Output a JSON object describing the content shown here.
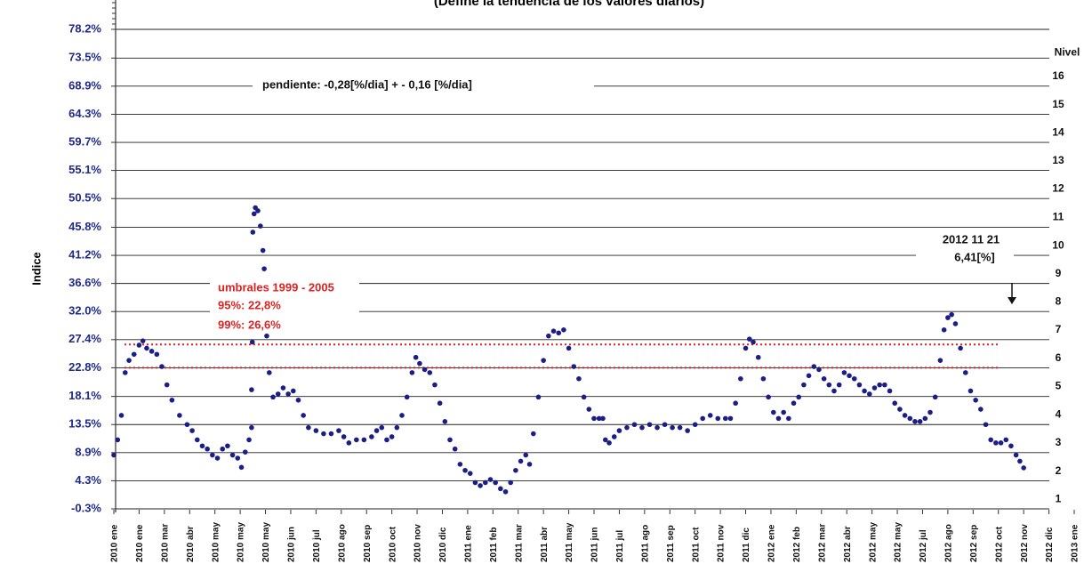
{
  "chart_data": {
    "type": "scatter",
    "title": "(Define la tendencia de los valores diarios)",
    "y_label": "Indice",
    "color": "#1b1e86",
    "xlim": [
      0,
      38
    ],
    "xticks": [
      {
        "value": 0,
        "label": "2010 ene"
      },
      {
        "value": 1,
        "label": "2010 ene"
      },
      {
        "value": 2,
        "label": "2010 mar"
      },
      {
        "value": 3,
        "label": "2010 abr"
      },
      {
        "value": 4,
        "label": "2010 may"
      },
      {
        "value": 5,
        "label": "2010 may"
      },
      {
        "value": 6,
        "label": "2010 may"
      },
      {
        "value": 7,
        "label": "2010 jun"
      },
      {
        "value": 8,
        "label": "2010 jul"
      },
      {
        "value": 9,
        "label": "2010 ago"
      },
      {
        "value": 10,
        "label": "2010 sep"
      },
      {
        "value": 11,
        "label": "2010 oct"
      },
      {
        "value": 12,
        "label": "2010 nov"
      },
      {
        "value": 13,
        "label": "2010 dic"
      },
      {
        "value": 14,
        "label": "2011 ene"
      },
      {
        "value": 15,
        "label": "2011 feb"
      },
      {
        "value": 16,
        "label": "2011 mar"
      },
      {
        "value": 17,
        "label": "2011 abr"
      },
      {
        "value": 18,
        "label": "2011 may"
      },
      {
        "value": 19,
        "label": "2011 jun"
      },
      {
        "value": 20,
        "label": "2011 jul"
      },
      {
        "value": 21,
        "label": "2011 ago"
      },
      {
        "value": 22,
        "label": "2011 sep"
      },
      {
        "value": 23,
        "label": "2011 oct"
      },
      {
        "value": 24,
        "label": "2011 nov"
      },
      {
        "value": 25,
        "label": "2011 dic"
      },
      {
        "value": 26,
        "label": "2012 ene"
      },
      {
        "value": 27,
        "label": "2012 feb"
      },
      {
        "value": 28,
        "label": "2012 mar"
      },
      {
        "value": 29,
        "label": "2012 abr"
      },
      {
        "value": 30,
        "label": "2012 may"
      },
      {
        "value": 31,
        "label": "2012 may"
      },
      {
        "value": 32,
        "label": "2012 jul"
      },
      {
        "value": 33,
        "label": "2012 ago"
      },
      {
        "value": 34,
        "label": "2012 sep"
      },
      {
        "value": 35,
        "label": "2012 oct"
      },
      {
        "value": 36,
        "label": "2012 nov"
      },
      {
        "value": 37,
        "label": "2012 dic"
      },
      {
        "value": 38,
        "label": "2013 ene"
      }
    ],
    "ylim": [
      -0.3,
      78.2
    ],
    "yticks": [
      {
        "value": -0.3,
        "label": "-0.3%"
      },
      {
        "value": 4.3,
        "label": "4.3%"
      },
      {
        "value": 8.9,
        "label": "8.9%"
      },
      {
        "value": 13.5,
        "label": "13.5%"
      },
      {
        "value": 18.1,
        "label": "18.1%"
      },
      {
        "value": 22.8,
        "label": "22.8%"
      },
      {
        "value": 27.4,
        "label": "27.4%"
      },
      {
        "value": 32.0,
        "label": "32.0%"
      },
      {
        "value": 36.6,
        "label": "36.6%"
      },
      {
        "value": 41.2,
        "label": "41.2%"
      },
      {
        "value": 45.8,
        "label": "45.8%"
      },
      {
        "value": 50.5,
        "label": "50.5%"
      },
      {
        "value": 55.1,
        "label": "55.1%"
      },
      {
        "value": 59.7,
        "label": "59.7%"
      },
      {
        "value": 64.3,
        "label": "64.3%"
      },
      {
        "value": 68.9,
        "label": "68.9%"
      },
      {
        "value": 73.5,
        "label": "73.5%"
      },
      {
        "value": 78.2,
        "label": "78.2%"
      }
    ],
    "grid": true,
    "levels": {
      "title": "Nivel",
      "labels": [
        "1",
        "2",
        "3",
        "4",
        "5",
        "6",
        "7",
        "8",
        "9",
        "10",
        "11",
        "12",
        "13",
        "14",
        "15",
        "16"
      ]
    },
    "thresholds": {
      "color": "#e01f1f",
      "values": [
        22.8,
        26.6
      ]
    },
    "annotations": {
      "slope": "pendiente:  -0,28[%/dia] + - 0,16 [%/dia]",
      "umbrales": "umbrales 1999 - 2005",
      "p95": "95%:   22,8%",
      "p99": "99%:   26,6%",
      "last_date": "2012 11 21",
      "last_value": "6,41[%]"
    },
    "series": [
      {
        "name": "Indice",
        "x": [
          0,
          0.15,
          0.3,
          0.45,
          0.6,
          0.8,
          1.0,
          1.15,
          1.3,
          1.5,
          1.7,
          1.9,
          2.1,
          2.3,
          2.6,
          2.9,
          3.1,
          3.3,
          3.5,
          3.7,
          3.9,
          4.1,
          4.3,
          4.5,
          4.7,
          4.9,
          5.05,
          5.2,
          5.35,
          5.45,
          5.45,
          5.48,
          5.5,
          5.55,
          5.6,
          5.7,
          5.8,
          5.9,
          5.95,
          6.05,
          6.15,
          6.3,
          6.5,
          6.7,
          6.9,
          7.1,
          7.3,
          7.5,
          7.7,
          8.0,
          8.3,
          8.6,
          8.9,
          9.1,
          9.3,
          9.6,
          9.9,
          10.2,
          10.4,
          10.6,
          10.8,
          11.0,
          11.2,
          11.4,
          11.6,
          11.8,
          11.95,
          12.1,
          12.3,
          12.5,
          12.7,
          12.9,
          13.1,
          13.3,
          13.5,
          13.7,
          13.9,
          14.1,
          14.3,
          14.5,
          14.7,
          14.9,
          15.1,
          15.3,
          15.5,
          15.7,
          15.9,
          16.1,
          16.3,
          16.45,
          16.6,
          16.8,
          17.0,
          17.2,
          17.4,
          17.6,
          17.8,
          18.0,
          18.2,
          18.4,
          18.6,
          18.8,
          19.0,
          19.2,
          19.35,
          19.45,
          19.6,
          19.8,
          20.0,
          20.3,
          20.6,
          20.9,
          21.2,
          21.5,
          21.8,
          22.1,
          22.4,
          22.7,
          23.0,
          23.3,
          23.6,
          23.9,
          24.2,
          24.4,
          24.6,
          24.8,
          25.0,
          25.15,
          25.3,
          25.5,
          25.7,
          25.9,
          26.1,
          26.3,
          26.5,
          26.7,
          26.9,
          27.1,
          27.3,
          27.5,
          27.7,
          27.9,
          28.1,
          28.3,
          28.5,
          28.7,
          28.9,
          29.1,
          29.3,
          29.5,
          29.7,
          29.9,
          30.1,
          30.3,
          30.5,
          30.7,
          30.9,
          31.1,
          31.3,
          31.5,
          31.7,
          31.9,
          32.1,
          32.3,
          32.5,
          32.7,
          32.85,
          33.0,
          33.15,
          33.3,
          33.5,
          33.7,
          33.9,
          34.1,
          34.3,
          34.5,
          34.7,
          34.9,
          35.1,
          35.3,
          35.5,
          35.7,
          35.85,
          36.0
        ],
        "values": [
          8.5,
          11,
          15,
          22,
          24,
          25,
          26.5,
          27.2,
          26,
          25.5,
          25,
          23,
          20,
          17.5,
          15,
          13.5,
          12.5,
          11,
          10,
          9.5,
          8.5,
          8,
          9.5,
          10,
          8.5,
          8,
          6.5,
          9,
          11,
          13,
          19.2,
          27,
          45,
          48,
          49,
          48.5,
          46,
          42,
          39,
          28,
          22,
          18,
          18.5,
          19.5,
          18.5,
          19,
          17.5,
          15,
          13,
          12.5,
          12,
          12,
          12.5,
          11.5,
          10.5,
          11,
          11,
          11.5,
          12.5,
          13,
          11,
          11.5,
          13,
          15,
          18,
          22,
          24.5,
          23.5,
          22.5,
          22,
          20,
          17,
          14,
          11,
          9.5,
          7,
          6,
          5.5,
          4,
          3.5,
          4,
          4.5,
          4,
          3,
          2.5,
          4,
          6,
          7.5,
          8.5,
          7,
          12,
          18,
          24,
          28,
          28.8,
          28.5,
          29,
          26,
          23,
          21,
          18,
          16,
          14.5,
          14.5,
          14.5,
          11,
          10.5,
          11.5,
          12.5,
          13,
          13.5,
          13,
          13.5,
          13,
          13.5,
          13,
          13,
          12.5,
          13.5,
          14.5,
          15,
          14.5,
          14.5,
          14.5,
          17,
          21,
          26,
          27.5,
          27,
          24.5,
          21,
          18,
          15.5,
          14.5,
          15.5,
          14.5,
          17,
          18,
          20,
          21.5,
          23,
          22.5,
          21,
          20,
          19,
          20,
          22,
          21.5,
          21,
          20,
          19,
          18.5,
          19.5,
          20,
          20,
          19,
          17,
          16,
          15,
          14.5,
          14,
          14,
          14.5,
          15.5,
          18,
          24,
          29,
          31,
          31.5,
          30,
          26,
          22,
          19,
          17.5,
          16,
          13.5,
          11,
          10.5,
          10.5,
          11,
          10,
          8.5,
          7.5,
          6.41
        ]
      }
    ]
  }
}
